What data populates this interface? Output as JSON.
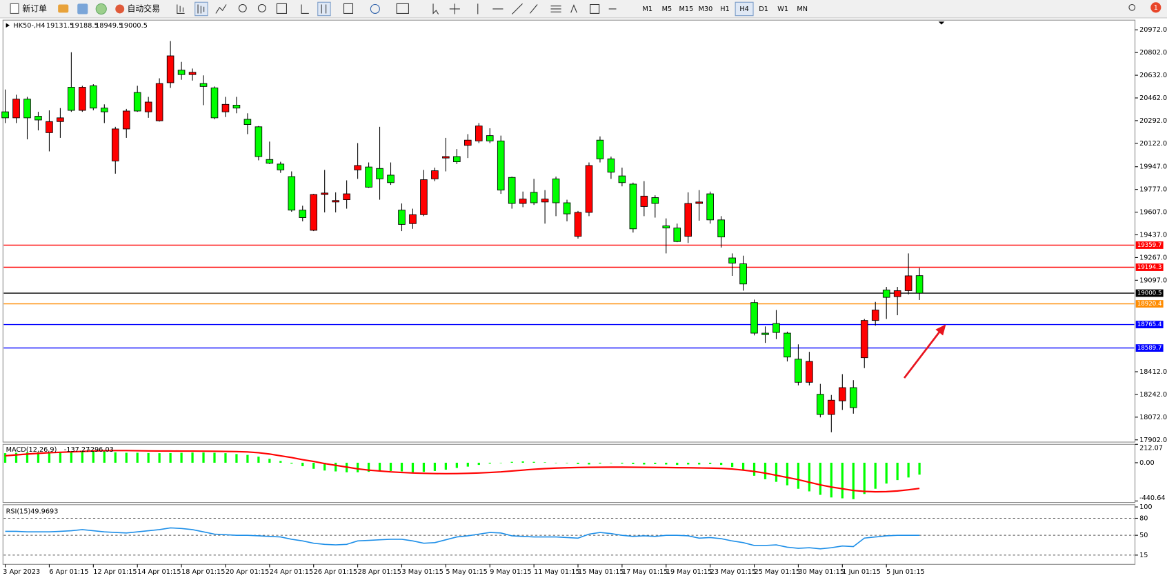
{
  "toolbar": {
    "new_order": "新订单",
    "auto_trading": "自动交易",
    "notifications": 1,
    "timeframes": [
      {
        "label": "M1"
      },
      {
        "label": "M5"
      },
      {
        "label": "M15"
      },
      {
        "label": "M30"
      },
      {
        "label": "H1"
      },
      {
        "label": "H4",
        "active": true
      },
      {
        "label": "D1"
      },
      {
        "label": "W1"
      },
      {
        "label": "MN"
      }
    ]
  },
  "chart_data": [
    {
      "type": "candlestick",
      "symbol": "HK50-,H4",
      "up_color": "#ff0000",
      "down_color": "#00ff00",
      "ylim": [
        17902,
        20972
      ],
      "yticks": [
        {
          "value": 20972,
          "label": "20972.0"
        },
        {
          "value": 20802,
          "label": "20802.0"
        },
        {
          "value": 20632,
          "label": "20632.0"
        },
        {
          "value": 20462,
          "label": "20462.0"
        },
        {
          "value": 20292,
          "label": "20292.0"
        },
        {
          "value": 20122,
          "label": "20122.0"
        },
        {
          "value": 19947,
          "label": "19947.0"
        },
        {
          "value": 19777,
          "label": "19777.0"
        },
        {
          "value": 19607,
          "label": "19607.0"
        },
        {
          "value": 19437,
          "label": "19437.0"
        },
        {
          "value": 19267,
          "label": "19267.0"
        },
        {
          "value": 19097,
          "label": "19097.0"
        },
        {
          "value": 18412,
          "label": "18412.0"
        },
        {
          "value": 18242,
          "label": "18242.0"
        },
        {
          "value": 18072,
          "label": "18072.0"
        },
        {
          "value": 17902,
          "label": "17902.0"
        }
      ],
      "hlines": [
        {
          "value": 19359.7,
          "color": "#ff0000"
        },
        {
          "value": 19194.3,
          "color": "#ff0000"
        },
        {
          "value": 18920.4,
          "color": "#ff8c00"
        },
        {
          "value": 18765.4,
          "color": "#0000ff"
        },
        {
          "value": 18589.7,
          "color": "#0000ff"
        }
      ],
      "last_price_line": true,
      "categories": [
        "3 Apr 2023",
        null,
        null,
        null,
        "6 Apr 01:15",
        null,
        null,
        null,
        "12 Apr 01:15",
        null,
        null,
        null,
        "14 Apr 01:15",
        null,
        null,
        null,
        "18 Apr 01:15",
        null,
        null,
        null,
        "20 Apr 01:15",
        null,
        null,
        null,
        "24 Apr 01:15",
        null,
        null,
        null,
        "26 Apr 01:15",
        null,
        null,
        null,
        "28 Apr 01:15",
        null,
        null,
        null,
        "3 May 01:15",
        null,
        null,
        null,
        "5 May 01:15",
        null,
        null,
        null,
        "9 May 01:15",
        null,
        null,
        null,
        "11 May 01:15",
        null,
        null,
        null,
        "15 May 01:15",
        null,
        null,
        null,
        "17 May 01:15",
        null,
        null,
        null,
        "19 May 01:15",
        null,
        null,
        null,
        "23 May 01:15",
        null,
        null,
        null,
        "25 May 01:15",
        null,
        null,
        null,
        "30 May 01:15",
        null,
        null,
        null,
        "1 Jun 01:15",
        null,
        null,
        null,
        "5 Jun 01:15",
        null,
        null,
        null
      ],
      "ohlc": [
        [
          20358,
          20525,
          20274,
          20313
        ],
        [
          20313,
          20486,
          20274,
          20453
        ],
        [
          20453,
          20470,
          20152,
          20313
        ],
        [
          20325,
          20358,
          20219,
          20297
        ],
        [
          20202,
          20369,
          20062,
          20285
        ],
        [
          20285,
          20386,
          20163,
          20313
        ],
        [
          20542,
          20804,
          20358,
          20369
        ],
        [
          20369,
          20553,
          20358,
          20542
        ],
        [
          20553,
          20565,
          20369,
          20386
        ],
        [
          20386,
          20414,
          20274,
          20358
        ],
        [
          19990,
          20246,
          19895,
          20230
        ],
        [
          20230,
          20380,
          20163,
          20364
        ],
        [
          20503,
          20553,
          20358,
          20364
        ],
        [
          20358,
          20470,
          20313,
          20431
        ],
        [
          20291,
          20609,
          20285,
          20570
        ],
        [
          20576,
          20888,
          20537,
          20777
        ],
        [
          20670,
          20732,
          20598,
          20637
        ],
        [
          20637,
          20682,
          20592,
          20654
        ],
        [
          20570,
          20631,
          20408,
          20548
        ],
        [
          20537,
          20548,
          20302,
          20313
        ],
        [
          20358,
          20470,
          20319,
          20414
        ],
        [
          20408,
          20470,
          20347,
          20386
        ],
        [
          20302,
          20347,
          20191,
          20263
        ],
        [
          20246,
          20252,
          19995,
          20023
        ],
        [
          20001,
          20135,
          19967,
          19973
        ],
        [
          19967,
          19984,
          19901,
          19923
        ],
        [
          19873,
          19912,
          19610,
          19622
        ],
        [
          19622,
          19655,
          19538,
          19566
        ],
        [
          19471,
          19744,
          19465,
          19739
        ],
        [
          19739,
          19923,
          19605,
          19750
        ],
        [
          19683,
          19755,
          19605,
          19694
        ],
        [
          19700,
          19845,
          19633,
          19744
        ],
        [
          19923,
          20124,
          19856,
          19956
        ],
        [
          19945,
          19979,
          19789,
          19794
        ],
        [
          19934,
          20246,
          19700,
          19856
        ],
        [
          19884,
          19979,
          19811,
          19828
        ],
        [
          19622,
          19672,
          19465,
          19515
        ],
        [
          19521,
          19633,
          19482,
          19588
        ],
        [
          19588,
          19923,
          19577,
          19850
        ],
        [
          19856,
          19940,
          19839,
          19917
        ],
        [
          20012,
          20163,
          19912,
          20023
        ],
        [
          20023,
          20079,
          19967,
          19984
        ],
        [
          20107,
          20191,
          20012,
          20146
        ],
        [
          20140,
          20274,
          20124,
          20252
        ],
        [
          20180,
          20235,
          20124,
          20140
        ],
        [
          20140,
          20180,
          19744,
          19772
        ],
        [
          19867,
          19873,
          19633,
          19672
        ],
        [
          19672,
          19761,
          19644,
          19705
        ],
        [
          19755,
          19856,
          19661,
          19677
        ],
        [
          19683,
          19772,
          19521,
          19705
        ],
        [
          19856,
          19873,
          19577,
          19677
        ],
        [
          19677,
          19700,
          19538,
          19594
        ],
        [
          19426,
          19616,
          19409,
          19605
        ],
        [
          19605,
          19979,
          19577,
          19956
        ],
        [
          20146,
          20174,
          19979,
          20006
        ],
        [
          20006,
          20023,
          19856,
          19906
        ],
        [
          19878,
          19940,
          19800,
          19828
        ],
        [
          19817,
          19828,
          19454,
          19482
        ],
        [
          19649,
          19839,
          19577,
          19727
        ],
        [
          19716,
          19733,
          19566,
          19672
        ],
        [
          19504,
          19560,
          19298,
          19488
        ],
        [
          19488,
          19521,
          19382,
          19387
        ],
        [
          19426,
          19755,
          19376,
          19672
        ],
        [
          19672,
          19772,
          19543,
          19683
        ],
        [
          19744,
          19761,
          19521,
          19549
        ],
        [
          19549,
          19577,
          19342,
          19421
        ],
        [
          19264,
          19298,
          19130,
          19225
        ],
        [
          19220,
          19281,
          19019,
          19069
        ],
        [
          18930,
          18952,
          18684,
          18701
        ],
        [
          18701,
          18751,
          18628,
          18690
        ],
        [
          18773,
          18874,
          18656,
          18706
        ],
        [
          18701,
          18712,
          18489,
          18522
        ],
        [
          18506,
          18617,
          18310,
          18333
        ],
        [
          18333,
          18561,
          18310,
          18489
        ],
        [
          18243,
          18321,
          18070,
          18092
        ],
        [
          18092,
          18238,
          17959,
          18199
        ],
        [
          18194,
          18394,
          18126,
          18293
        ],
        [
          18293,
          18349,
          18098,
          18143
        ],
        [
          18517,
          18807,
          18439,
          18796
        ],
        [
          18796,
          18935,
          18757,
          18874
        ],
        [
          19024,
          19047,
          18807,
          18969
        ],
        [
          18974,
          19047,
          18835,
          19019
        ],
        [
          19019,
          19298,
          18991,
          19130
        ],
        [
          19131.5,
          19188.5,
          18949.5,
          19000.5
        ]
      ]
    },
    {
      "type": "macd",
      "name": "MACD(12,26,9)",
      "hist_color": "#00ff00",
      "signal_color": "#ff0000",
      "ylim": [
        -440.64,
        212.07
      ],
      "yticks": [
        212.07,
        {
          "value": 0,
          "label": "0.00"
        },
        -440.64
      ],
      "histogram": [
        110,
        115,
        120,
        120,
        118,
        120,
        125,
        128,
        130,
        128,
        120,
        115,
        115,
        112,
        110,
        112,
        115,
        118,
        118,
        115,
        110,
        100,
        90,
        70,
        45,
        20,
        -10,
        -40,
        -70,
        -90,
        -100,
        -110,
        -110,
        -105,
        -100,
        -95,
        -100,
        -110,
        -105,
        -95,
        -80,
        -60,
        -45,
        -25,
        -10,
        0,
        10,
        15,
        10,
        5,
        0,
        -5,
        -15,
        -20,
        -10,
        -5,
        -10,
        -15,
        -20,
        -15,
        -20,
        -25,
        -20,
        -20,
        -15,
        -25,
        -50,
        -90,
        -150,
        -190,
        -220,
        -260,
        -300,
        -330,
        -370,
        -400,
        -410,
        -420,
        -360,
        -300,
        -240,
        -200,
        -170,
        -137.27
      ],
      "signal": [
        80,
        90,
        100,
        108,
        115,
        120,
        125,
        130,
        135,
        138,
        140,
        140,
        138,
        136,
        135,
        135,
        134,
        134,
        133,
        132,
        130,
        128,
        124,
        115,
        100,
        80,
        60,
        35,
        15,
        -10,
        -30,
        -50,
        -70,
        -85,
        -95,
        -105,
        -112,
        -118,
        -122,
        -125,
        -126,
        -125,
        -122,
        -118,
        -112,
        -105,
        -95,
        -85,
        -75,
        -68,
        -62,
        -58,
        -55,
        -53,
        -52,
        -51,
        -51,
        -52,
        -53,
        -54,
        -55,
        -57,
        -58,
        -60,
        -62,
        -65,
        -72,
        -85,
        -100,
        -120,
        -145,
        -170,
        -195,
        -225,
        -255,
        -280,
        -300,
        -320,
        -330,
        -335,
        -333,
        -325,
        -312,
        -296.03
      ]
    },
    {
      "type": "line",
      "name": "RSI(15)",
      "color": "#1e8fe8",
      "ylim": [
        0,
        100
      ],
      "yticks": [
        100,
        80,
        50,
        15
      ],
      "dashed_grid": true,
      "values": [
        57,
        57,
        56,
        56,
        56,
        57,
        58,
        60,
        58,
        56,
        55,
        54,
        56,
        58,
        60,
        63,
        62,
        60,
        56,
        52,
        51,
        50,
        50,
        49,
        48,
        47,
        43,
        40,
        36,
        34,
        33,
        34,
        40,
        41,
        42,
        43,
        43,
        40,
        36,
        37,
        42,
        47,
        49,
        52,
        55,
        54,
        49,
        48,
        47,
        47,
        47,
        46,
        45,
        52,
        55,
        53,
        50,
        48,
        49,
        48,
        50,
        50,
        49,
        45,
        46,
        44,
        40,
        37,
        32,
        32,
        33,
        29,
        27,
        28,
        26,
        28,
        31,
        30,
        45,
        47,
        49,
        50,
        50,
        49.9693
      ]
    }
  ]
}
